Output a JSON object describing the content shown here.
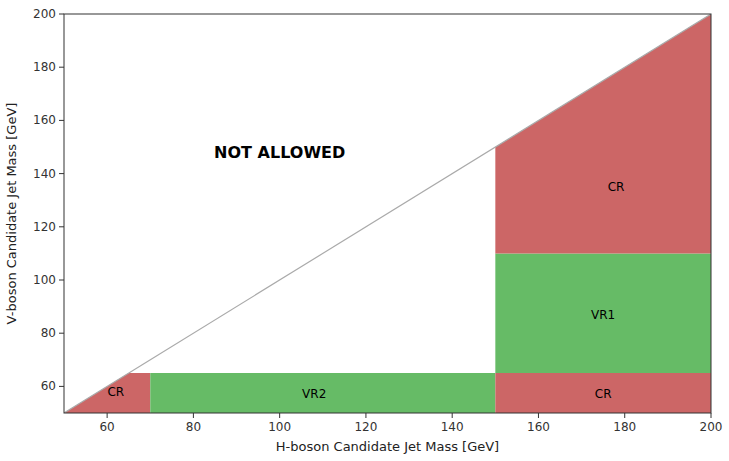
{
  "chart_data": {
    "type": "region",
    "xlabel": "H-boson Candidate Jet Mass [GeV]",
    "ylabel": "V-boson Candidate Jet Mass [GeV]",
    "xlim": [
      50,
      200
    ],
    "ylim": [
      50,
      200
    ],
    "xticks": [
      60,
      80,
      100,
      120,
      140,
      160,
      180,
      200
    ],
    "yticks": [
      60,
      80,
      100,
      120,
      140,
      160,
      180,
      200
    ],
    "grid": false,
    "series": [
      {
        "type": "polygon",
        "color": "#cc6666",
        "x": [
          50,
          70,
          70,
          65
        ],
        "values": [
          50,
          50,
          65,
          65
        ]
      },
      {
        "type": "polygon",
        "color": "#66bb66",
        "x": [
          70,
          150,
          150,
          70
        ],
        "values": [
          50,
          50,
          65,
          65
        ]
      },
      {
        "type": "polygon",
        "color": "#cc6666",
        "x": [
          150,
          200,
          200,
          150
        ],
        "values": [
          50,
          50,
          65,
          65
        ]
      },
      {
        "type": "polygon",
        "color": "#66bb66",
        "x": [
          150,
          200,
          200,
          150
        ],
        "values": [
          65,
          65,
          110,
          110
        ]
      },
      {
        "type": "polygon",
        "color": "#cc6666",
        "x": [
          150,
          200,
          200,
          150
        ],
        "values": [
          110,
          110,
          200,
          150
        ]
      },
      {
        "type": "line",
        "color": "#aaaaaa",
        "x": [
          50,
          200
        ],
        "values": [
          50,
          200
        ]
      }
    ],
    "annotations": [
      {
        "text": "NOT ALLOWED",
        "x": 100,
        "y": 148
      },
      {
        "text": "CR",
        "x": 62,
        "y": 58
      },
      {
        "text": "VR2",
        "x": 108,
        "y": 57
      },
      {
        "text": "CR",
        "x": 175,
        "y": 57
      },
      {
        "text": "VR1",
        "x": 175,
        "y": 87
      },
      {
        "text": "CR",
        "x": 178,
        "y": 135
      }
    ]
  }
}
